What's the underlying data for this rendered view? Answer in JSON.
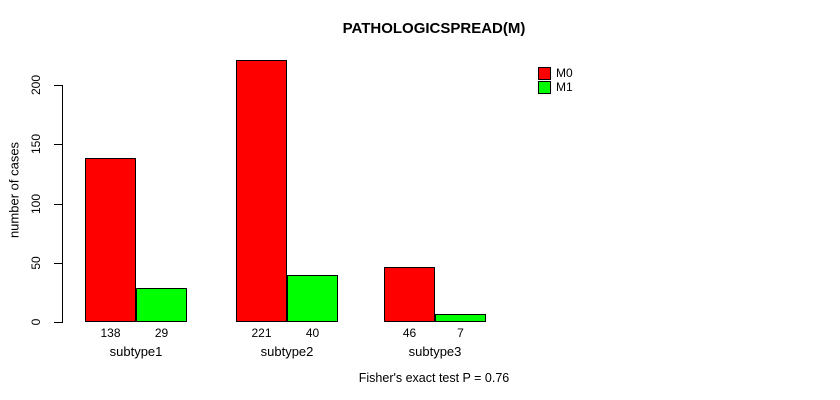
{
  "chart_data": {
    "type": "bar",
    "title": "PATHOLOGICSPREAD(M)",
    "xlabel": "",
    "ylabel": "number of cases",
    "categories": [
      "subtype1",
      "subtype2",
      "subtype3"
    ],
    "series": [
      {
        "name": "M0",
        "color": "#ff0000",
        "values": [
          138,
          221,
          46
        ]
      },
      {
        "name": "M1",
        "color": "#00ff00",
        "values": [
          29,
          40,
          7
        ]
      }
    ],
    "yticks": [
      0,
      50,
      100,
      150,
      200
    ],
    "ylim": [
      0,
      225
    ],
    "grid": false,
    "legend_position": "topright",
    "bar_value_labels_shown": true,
    "annotation": "Fisher's exact test P = 0.76"
  }
}
